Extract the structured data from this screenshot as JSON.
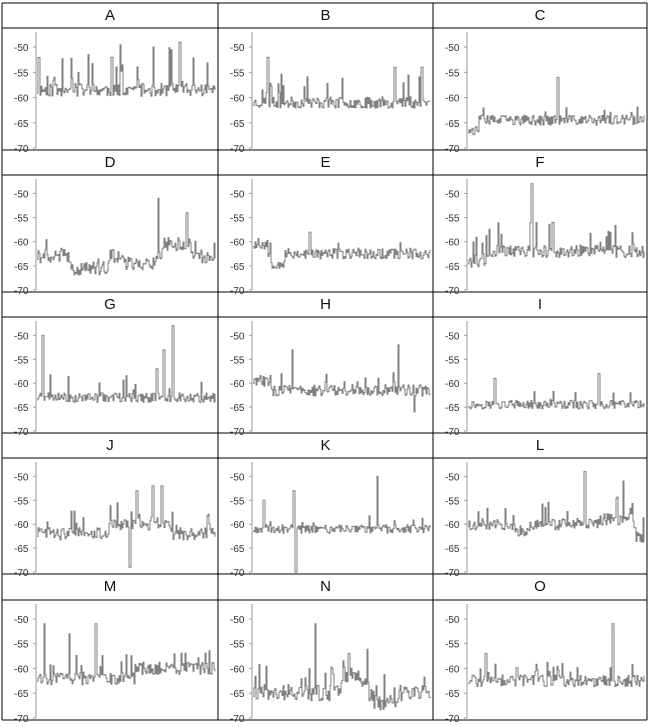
{
  "table": {
    "line_color": "#000000",
    "series_color": "#808080",
    "axis_color": "#9a9a9a",
    "tick_label_color": "#333333"
  },
  "chart_data": [
    {
      "type": "line",
      "title": "A",
      "ylim": [
        -70,
        -47
      ],
      "yticks": [
        -50,
        -55,
        -60,
        -65,
        -70
      ],
      "baseline": -58.5,
      "noise": 1.3,
      "spike_rate": 0.18,
      "spike_max": 9,
      "segments": [],
      "spikes": [
        {
          "t": 0.42,
          "v": -52
        },
        {
          "t": 0.8,
          "v": -49
        }
      ],
      "seed": 11
    },
    {
      "type": "line",
      "title": "B",
      "ylim": [
        -70,
        -47
      ],
      "yticks": [
        -50,
        -55,
        -60,
        -65,
        -70
      ],
      "baseline": -61,
      "noise": 1.1,
      "spike_rate": 0.08,
      "spike_max": 6,
      "segments": [],
      "spikes": [
        {
          "t": 0.08,
          "v": -52
        },
        {
          "t": 0.8,
          "v": -54
        },
        {
          "t": 0.95,
          "v": -54
        }
      ],
      "seed": 23
    },
    {
      "type": "line",
      "title": "C",
      "ylim": [
        -70,
        -47
      ],
      "yticks": [
        -50,
        -55,
        -60,
        -65,
        -70
      ],
      "baseline": -64.5,
      "noise": 1.0,
      "spike_rate": 0.06,
      "spike_max": 3,
      "segments": [
        {
          "from": 0,
          "to": 0.06,
          "v": -66.5
        }
      ],
      "spikes": [
        {
          "t": 0.51,
          "v": -56
        }
      ],
      "seed": 37
    },
    {
      "type": "line",
      "title": "D",
      "ylim": [
        -70,
        -47
      ],
      "yticks": [
        -50,
        -55,
        -60,
        -65,
        -70
      ],
      "baseline": -63,
      "noise": 1.4,
      "spike_rate": 0.08,
      "spike_max": 4,
      "segments": [
        {
          "from": 0.18,
          "to": 0.4,
          "v": -65.5
        },
        {
          "from": 0.5,
          "to": 0.66,
          "v": -64.5
        },
        {
          "from": 0.7,
          "to": 0.86,
          "v": -60.5
        }
      ],
      "spikes": [
        {
          "t": 0.68,
          "v": -51
        },
        {
          "t": 0.84,
          "v": -54
        }
      ],
      "seed": 41
    },
    {
      "type": "line",
      "title": "E",
      "ylim": [
        -70,
        -47
      ],
      "yticks": [
        -50,
        -55,
        -60,
        -65,
        -70
      ],
      "baseline": -62.5,
      "noise": 1.1,
      "spike_rate": 0.05,
      "spike_max": 3,
      "segments": [
        {
          "from": 0,
          "to": 0.08,
          "v": -60.5
        },
        {
          "from": 0.1,
          "to": 0.18,
          "v": -64.5
        }
      ],
      "spikes": [
        {
          "t": 0.32,
          "v": -58
        }
      ],
      "seed": 53
    },
    {
      "type": "line",
      "title": "F",
      "ylim": [
        -70,
        -47
      ],
      "yticks": [
        -50,
        -55,
        -60,
        -65,
        -70
      ],
      "baseline": -62,
      "noise": 1.3,
      "spike_rate": 0.15,
      "spike_max": 6,
      "segments": [
        {
          "from": 0,
          "to": 0.1,
          "v": -64
        }
      ],
      "spikes": [
        {
          "t": 0.36,
          "v": -48
        },
        {
          "t": 0.48,
          "v": -56
        }
      ],
      "seed": 67
    },
    {
      "type": "line",
      "title": "G",
      "ylim": [
        -70,
        -47
      ],
      "yticks": [
        -50,
        -55,
        -60,
        -65,
        -70
      ],
      "baseline": -63,
      "noise": 1.0,
      "spike_rate": 0.1,
      "spike_max": 5,
      "segments": [],
      "spikes": [
        {
          "t": 0.03,
          "v": -50
        },
        {
          "t": 0.67,
          "v": -57
        },
        {
          "t": 0.71,
          "v": -53
        },
        {
          "t": 0.76,
          "v": -48
        }
      ],
      "seed": 71
    },
    {
      "type": "line",
      "title": "H",
      "ylim": [
        -70,
        -47
      ],
      "yticks": [
        -50,
        -55,
        -60,
        -65,
        -70
      ],
      "baseline": -61.5,
      "noise": 1.2,
      "spike_rate": 0.1,
      "spike_max": 4,
      "segments": [
        {
          "from": 0,
          "to": 0.1,
          "v": -59.5
        }
      ],
      "spikes": [
        {
          "t": 0.22,
          "v": -53
        },
        {
          "t": 0.82,
          "v": -52
        },
        {
          "t": 0.91,
          "v": -66
        }
      ],
      "seed": 83
    },
    {
      "type": "line",
      "title": "I",
      "ylim": [
        -70,
        -47
      ],
      "yticks": [
        -50,
        -55,
        -60,
        -65,
        -70
      ],
      "baseline": -64.5,
      "noise": 0.9,
      "spike_rate": 0.05,
      "spike_max": 3,
      "segments": [],
      "spikes": [
        {
          "t": 0.15,
          "v": -59
        },
        {
          "t": 0.74,
          "v": -58
        }
      ],
      "seed": 97
    },
    {
      "type": "line",
      "title": "J",
      "ylim": [
        -70,
        -47
      ],
      "yticks": [
        -50,
        -55,
        -60,
        -65,
        -70
      ],
      "baseline": -62,
      "noise": 1.3,
      "spike_rate": 0.12,
      "spike_max": 5,
      "segments": [
        {
          "from": 0.4,
          "to": 0.75,
          "v": -60
        }
      ],
      "spikes": [
        {
          "t": 0.56,
          "v": -53
        },
        {
          "t": 0.65,
          "v": -52
        },
        {
          "t": 0.7,
          "v": -52
        },
        {
          "t": 0.52,
          "v": -69
        }
      ],
      "seed": 101
    },
    {
      "type": "line",
      "title": "K",
      "ylim": [
        -70,
        -47
      ],
      "yticks": [
        -50,
        -55,
        -60,
        -65,
        -70
      ],
      "baseline": -61,
      "noise": 0.9,
      "spike_rate": 0.08,
      "spike_max": 3,
      "segments": [],
      "spikes": [
        {
          "t": 0.06,
          "v": -55
        },
        {
          "t": 0.23,
          "v": -53
        },
        {
          "t": 0.24,
          "v": -70
        },
        {
          "t": 0.7,
          "v": -50
        }
      ],
      "seed": 113
    },
    {
      "type": "line",
      "title": "L",
      "ylim": [
        -70,
        -47
      ],
      "yticks": [
        -50,
        -55,
        -60,
        -65,
        -70
      ],
      "baseline": -60,
      "noise": 1.2,
      "spike_rate": 0.12,
      "spike_max": 5,
      "segments": [
        {
          "from": 0.25,
          "to": 0.35,
          "v": -61.5
        },
        {
          "from": 0.75,
          "to": 0.94,
          "v": -59
        },
        {
          "from": 0.95,
          "to": 1.0,
          "v": -63
        }
      ],
      "spikes": [
        {
          "t": 0.66,
          "v": -49
        },
        {
          "t": 0.88,
          "v": -51
        }
      ],
      "seed": 127
    },
    {
      "type": "line",
      "title": "M",
      "ylim": [
        -70,
        -47
      ],
      "yticks": [
        -50,
        -55,
        -60,
        -65,
        -70
      ],
      "baseline": -62,
      "noise": 1.3,
      "spike_rate": 0.1,
      "spike_max": 5,
      "segments": [
        {
          "from": 0.55,
          "to": 1.0,
          "v": -60
        }
      ],
      "spikes": [
        {
          "t": 0.04,
          "v": -51
        },
        {
          "t": 0.18,
          "v": -53
        },
        {
          "t": 0.33,
          "v": -51
        }
      ],
      "seed": 131
    },
    {
      "type": "line",
      "title": "N",
      "ylim": [
        -70,
        -47
      ],
      "yticks": [
        -50,
        -55,
        -60,
        -65,
        -70
      ],
      "baseline": -65,
      "noise": 1.6,
      "spike_rate": 0.15,
      "spike_max": 6,
      "segments": [
        {
          "from": 0.5,
          "to": 0.65,
          "v": -62
        },
        {
          "from": 0.68,
          "to": 0.82,
          "v": -67
        }
      ],
      "spikes": [
        {
          "t": 0.35,
          "v": -51
        },
        {
          "t": 0.54,
          "v": -57
        }
      ],
      "seed": 149
    },
    {
      "type": "line",
      "title": "O",
      "ylim": [
        -70,
        -47
      ],
      "yticks": [
        -50,
        -55,
        -60,
        -65,
        -70
      ],
      "baseline": -62.5,
      "noise": 1.2,
      "spike_rate": 0.12,
      "spike_max": 4,
      "segments": [],
      "spikes": [
        {
          "t": 0.1,
          "v": -57
        },
        {
          "t": 0.82,
          "v": -51
        }
      ],
      "seed": 157
    }
  ]
}
